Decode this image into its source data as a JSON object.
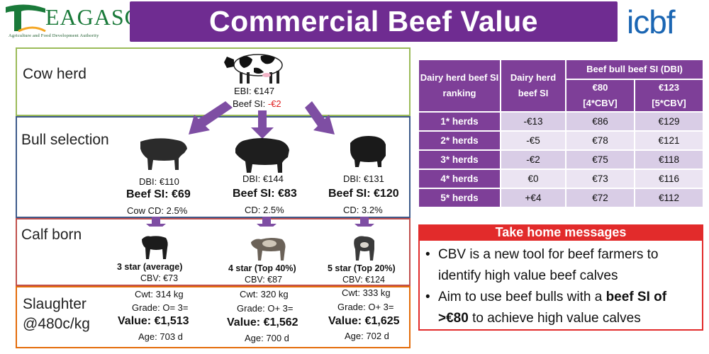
{
  "header": {
    "title": "Commercial Beef Value",
    "teagasc_name": "EAGASC",
    "teagasc_letter": "T",
    "teagasc_tagline": "Agriculture and Food Development Authority",
    "icbf_name": "icbf",
    "colors": {
      "title_bg": "#6f2c91",
      "teagasc_green": "#1a7a3a",
      "icbf_blue": "#1b66b3"
    }
  },
  "flow": {
    "cow_herd": {
      "label": "Cow herd",
      "ebi": "EBI: €147",
      "beef_si_label": "Beef SI: ",
      "beef_si_value": "-€2",
      "icon": "holstein-cow-icon"
    },
    "bull_selection": {
      "label": "Bull selection",
      "bulls": [
        {
          "dbi": "DBI: €110",
          "beef_si": "Beef SI: €69",
          "cd": "Cow CD: 2.5%",
          "icon": "angus-bull-icon"
        },
        {
          "dbi": "DBI: €144",
          "beef_si": "Beef SI: €83",
          "cd": "CD: 2.5%",
          "icon": "angus-bull-icon"
        },
        {
          "dbi": "DBI: €131",
          "beef_si": "Beef SI: €120",
          "cd": "CD: 3.2%",
          "icon": "angus-bull-icon"
        }
      ]
    },
    "calf_born": {
      "label": "Calf born",
      "calves": [
        {
          "stars": "3 star (average)",
          "cbv": "CBV: €73",
          "icon": "calf-icon"
        },
        {
          "stars": "4 star (Top 40%)",
          "cbv": "CBV: €87",
          "icon": "calf-icon"
        },
        {
          "stars": "5 star (Top 20%)",
          "cbv": "CBV: €124",
          "icon": "calf-icon"
        }
      ]
    },
    "slaughter": {
      "label_line1": "Slaughter",
      "label_line2": "@480c/kg",
      "results": [
        {
          "cwt": "Cwt: 314 kg",
          "grade": "Grade: O= 3=",
          "value": "Value: €1,513",
          "age": "Age: 703 d"
        },
        {
          "cwt": "Cwt: 320 kg",
          "grade": "Grade: O+ 3=",
          "value": "Value: €1,562",
          "age": "Age: 700 d"
        },
        {
          "cwt": "Cwt: 333 kg",
          "grade": "Grade: O+ 3=",
          "value": "Value: €1,625",
          "age": "Age: 702 d"
        }
      ]
    },
    "colors": {
      "cow": "#9bbb59",
      "bull": "#3d5a8a",
      "calf": "#c0504d",
      "slaughter": "#e46c0a",
      "arrow": "#7e4ea3",
      "negative": "#e02020"
    }
  },
  "table": {
    "headers": {
      "col1": "Dairy herd beef SI ranking",
      "col2": "Dairy herd beef SI",
      "group": "Beef bull beef SI (DBI)",
      "sub1_line1": "€80",
      "sub1_line2": "[4*CBV]",
      "sub2_line1": "€123",
      "sub2_line2": "[5*CBV]"
    },
    "rows": [
      {
        "herd": "1* herds",
        "si": "-€13",
        "v80": "€86",
        "v123": "€129"
      },
      {
        "herd": "2* herds",
        "si": "-€5",
        "v80": "€78",
        "v123": "€121"
      },
      {
        "herd": "3* herds",
        "si": "-€2",
        "v80": "€75",
        "v123": "€118"
      },
      {
        "herd": "4* herds",
        "si": "€0",
        "v80": "€73",
        "v123": "€116"
      },
      {
        "herd": "5* herds",
        "si": "+€4",
        "v80": "€72",
        "v123": "€112"
      }
    ],
    "colors": {
      "header": "#7e3f98",
      "cell_a": "#d9cde6",
      "cell_b": "#ebe4f2"
    }
  },
  "messages": {
    "title": "Take home messages",
    "bullet": "•",
    "item1": "CBV is a new tool for beef farmers to identify high value beef calves",
    "item2_pre": "Aim to use beef bulls with a ",
    "item2_bold": "beef SI of >€80",
    "item2_post": " to achieve high value calves",
    "colors": {
      "accent": "#e22b2b"
    }
  }
}
